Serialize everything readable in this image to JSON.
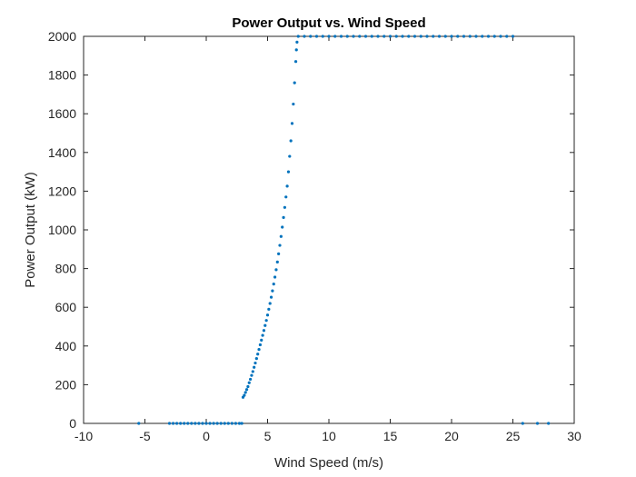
{
  "chart_data": {
    "type": "scatter",
    "title": "Power Output vs. Wind Speed",
    "xlabel": "Wind Speed (m/s)",
    "ylabel": "Power Output (kW)",
    "xlim": [
      -10,
      30
    ],
    "ylim": [
      0,
      2000
    ],
    "xticks": [
      -10,
      -5,
      0,
      5,
      10,
      15,
      20,
      25,
      30
    ],
    "yticks": [
      0,
      200,
      400,
      600,
      800,
      1000,
      1200,
      1400,
      1600,
      1800,
      2000
    ],
    "grid": false,
    "marker_color": "#0072BD",
    "points": [
      [
        -5.5,
        0
      ],
      [
        -3.0,
        0
      ],
      [
        -2.7,
        0
      ],
      [
        -2.4,
        0
      ],
      [
        -2.1,
        0
      ],
      [
        -1.8,
        0
      ],
      [
        -1.5,
        0
      ],
      [
        -1.2,
        0
      ],
      [
        -0.9,
        0
      ],
      [
        -0.6,
        0
      ],
      [
        -0.3,
        0
      ],
      [
        0.0,
        0
      ],
      [
        0.3,
        0
      ],
      [
        0.6,
        0
      ],
      [
        0.9,
        0
      ],
      [
        1.2,
        0
      ],
      [
        1.5,
        0
      ],
      [
        1.8,
        0
      ],
      [
        2.1,
        0
      ],
      [
        2.4,
        0
      ],
      [
        2.7,
        0
      ],
      [
        2.9,
        0
      ],
      [
        25.8,
        0
      ],
      [
        27.0,
        0
      ],
      [
        27.9,
        0
      ],
      [
        3.0,
        135
      ],
      [
        3.1,
        145
      ],
      [
        3.2,
        160
      ],
      [
        3.3,
        175
      ],
      [
        3.4,
        190
      ],
      [
        3.5,
        210
      ],
      [
        3.6,
        228
      ],
      [
        3.7,
        248
      ],
      [
        3.8,
        268
      ],
      [
        3.9,
        290
      ],
      [
        4.0,
        312
      ],
      [
        4.1,
        335
      ],
      [
        4.2,
        358
      ],
      [
        4.3,
        382
      ],
      [
        4.4,
        406
      ],
      [
        4.5,
        430
      ],
      [
        4.6,
        455
      ],
      [
        4.7,
        480
      ],
      [
        4.8,
        506
      ],
      [
        4.9,
        532
      ],
      [
        5.0,
        560
      ],
      [
        5.1,
        590
      ],
      [
        5.2,
        620
      ],
      [
        5.3,
        652
      ],
      [
        5.4,
        685
      ],
      [
        5.5,
        720
      ],
      [
        5.6,
        756
      ],
      [
        5.7,
        794
      ],
      [
        5.8,
        834
      ],
      [
        5.9,
        876
      ],
      [
        6.0,
        920
      ],
      [
        6.1,
        966
      ],
      [
        6.2,
        1014
      ],
      [
        6.3,
        1064
      ],
      [
        6.4,
        1116
      ],
      [
        6.5,
        1170
      ],
      [
        6.6,
        1226
      ],
      [
        6.7,
        1300
      ],
      [
        6.8,
        1380
      ],
      [
        6.9,
        1460
      ],
      [
        7.0,
        1550
      ],
      [
        7.1,
        1650
      ],
      [
        7.2,
        1760
      ],
      [
        7.3,
        1870
      ],
      [
        7.35,
        1930
      ],
      [
        7.4,
        1970
      ],
      [
        7.5,
        2000
      ],
      [
        8.0,
        2000
      ],
      [
        8.5,
        2000
      ],
      [
        9.0,
        2000
      ],
      [
        9.5,
        2000
      ],
      [
        10.0,
        2000
      ],
      [
        10.5,
        2000
      ],
      [
        11.0,
        2000
      ],
      [
        11.5,
        2000
      ],
      [
        12.0,
        2000
      ],
      [
        12.5,
        2000
      ],
      [
        13.0,
        2000
      ],
      [
        13.5,
        2000
      ],
      [
        14.0,
        2000
      ],
      [
        14.5,
        2000
      ],
      [
        15.0,
        2000
      ],
      [
        15.5,
        2000
      ],
      [
        16.0,
        2000
      ],
      [
        16.5,
        2000
      ],
      [
        17.0,
        2000
      ],
      [
        17.5,
        2000
      ],
      [
        18.0,
        2000
      ],
      [
        18.5,
        2000
      ],
      [
        19.0,
        2000
      ],
      [
        19.5,
        2000
      ],
      [
        20.0,
        2000
      ],
      [
        20.5,
        2000
      ],
      [
        21.0,
        2000
      ],
      [
        21.5,
        2000
      ],
      [
        22.0,
        2000
      ],
      [
        22.5,
        2000
      ],
      [
        23.0,
        2000
      ],
      [
        23.5,
        2000
      ],
      [
        24.0,
        2000
      ],
      [
        24.5,
        2000
      ],
      [
        25.0,
        2000
      ]
    ]
  }
}
